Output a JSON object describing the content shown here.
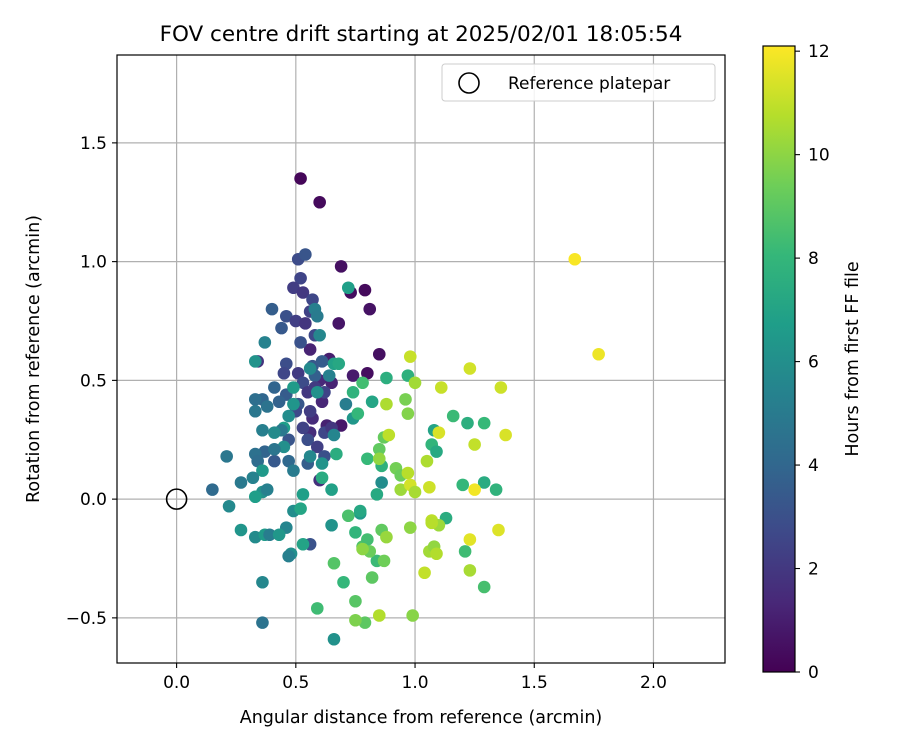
{
  "chart_data": {
    "type": "scatter",
    "title": "FOV centre drift starting at 2025/02/01 18:05:54",
    "xlabel": "Angular distance from reference (arcmin)",
    "ylabel": "Rotation from reference (arcmin)",
    "xlim": [
      -0.25,
      2.3
    ],
    "ylim": [
      -0.69,
      1.87
    ],
    "xticks": [
      0.0,
      0.5,
      1.0,
      1.5,
      2.0
    ],
    "xtick_labels": [
      "0.0",
      "0.5",
      "1.0",
      "1.5",
      "2.0"
    ],
    "yticks": [
      -0.5,
      0.0,
      0.5,
      1.0,
      1.5
    ],
    "ytick_labels": [
      "−0.5",
      "0.0",
      "0.5",
      "1.0",
      "1.5"
    ],
    "grid": true,
    "legend": {
      "placement": "top-right",
      "entries": [
        "Reference platepar"
      ]
    },
    "reference_point": {
      "label": "Reference platepar",
      "x": 0.0,
      "y": 0.0,
      "marker": "open-circle"
    },
    "colorbar": {
      "label": "Hours from first FF file",
      "min": 0,
      "max": 12.1,
      "ticks": [
        0,
        2,
        4,
        6,
        8,
        10,
        12
      ],
      "tick_labels": [
        "0",
        "2",
        "4",
        "6",
        "8",
        "10",
        "12"
      ],
      "colormap": "viridis"
    },
    "colormap_stops": [
      "#440154",
      "#482878",
      "#3e4989",
      "#31688e",
      "#26828e",
      "#1f9e89",
      "#35b779",
      "#6ece58",
      "#b5de2b",
      "#fde725"
    ],
    "points": [
      {
        "x": 0.52,
        "y": 1.35,
        "h": 0.2
      },
      {
        "x": 0.6,
        "y": 1.25,
        "h": 0.3
      },
      {
        "x": 0.69,
        "y": 0.98,
        "h": 0.5
      },
      {
        "x": 0.73,
        "y": 0.87,
        "h": 0.4
      },
      {
        "x": 0.79,
        "y": 0.88,
        "h": 0.3
      },
      {
        "x": 0.81,
        "y": 0.8,
        "h": 0.6
      },
      {
        "x": 0.68,
        "y": 0.74,
        "h": 0.7
      },
      {
        "x": 0.85,
        "y": 0.61,
        "h": 0.5
      },
      {
        "x": 0.74,
        "y": 0.52,
        "h": 0.9
      },
      {
        "x": 0.8,
        "y": 0.53,
        "h": 0.4
      },
      {
        "x": 0.64,
        "y": 0.59,
        "h": 1.0
      },
      {
        "x": 0.56,
        "y": 0.63,
        "h": 1.2
      },
      {
        "x": 0.61,
        "y": 0.41,
        "h": 1.3
      },
      {
        "x": 0.57,
        "y": 0.34,
        "h": 1.5
      },
      {
        "x": 0.63,
        "y": 0.31,
        "h": 1.1
      },
      {
        "x": 0.6,
        "y": 0.5,
        "h": 1.4
      },
      {
        "x": 0.69,
        "y": 0.31,
        "h": 0.8
      },
      {
        "x": 0.56,
        "y": 0.28,
        "h": 1.6
      },
      {
        "x": 0.6,
        "y": 0.08,
        "h": 1.7
      },
      {
        "x": 0.65,
        "y": 0.49,
        "h": 1.2
      },
      {
        "x": 0.51,
        "y": 1.01,
        "h": 2.8
      },
      {
        "x": 0.54,
        "y": 1.03,
        "h": 3.2
      },
      {
        "x": 0.52,
        "y": 0.93,
        "h": 2.5
      },
      {
        "x": 0.49,
        "y": 0.89,
        "h": 2.2
      },
      {
        "x": 0.53,
        "y": 0.87,
        "h": 2.0
      },
      {
        "x": 0.57,
        "y": 0.84,
        "h": 2.6
      },
      {
        "x": 0.56,
        "y": 0.79,
        "h": 2.4
      },
      {
        "x": 0.46,
        "y": 0.77,
        "h": 3.0
      },
      {
        "x": 0.5,
        "y": 0.75,
        "h": 2.3
      },
      {
        "x": 0.54,
        "y": 0.74,
        "h": 1.9
      },
      {
        "x": 0.44,
        "y": 0.72,
        "h": 3.4
      },
      {
        "x": 0.4,
        "y": 0.8,
        "h": 3.6
      },
      {
        "x": 0.52,
        "y": 0.66,
        "h": 3.1
      },
      {
        "x": 0.58,
        "y": 0.69,
        "h": 2.7
      },
      {
        "x": 0.34,
        "y": 0.58,
        "h": 1.8
      },
      {
        "x": 0.46,
        "y": 0.57,
        "h": 2.9
      },
      {
        "x": 0.51,
        "y": 0.53,
        "h": 2.1
      },
      {
        "x": 0.45,
        "y": 0.53,
        "h": 2.6
      },
      {
        "x": 0.53,
        "y": 0.49,
        "h": 2.8
      },
      {
        "x": 0.58,
        "y": 0.52,
        "h": 3.7
      },
      {
        "x": 0.55,
        "y": 0.45,
        "h": 2.0
      },
      {
        "x": 0.62,
        "y": 0.45,
        "h": 2.5
      },
      {
        "x": 0.51,
        "y": 0.4,
        "h": 3.3
      },
      {
        "x": 0.46,
        "y": 0.44,
        "h": 3.5
      },
      {
        "x": 0.56,
        "y": 0.37,
        "h": 2.2
      },
      {
        "x": 0.5,
        "y": 0.37,
        "h": 2.7
      },
      {
        "x": 0.43,
        "y": 0.41,
        "h": 3.8
      },
      {
        "x": 0.41,
        "y": 0.47,
        "h": 3.9
      },
      {
        "x": 0.36,
        "y": 0.42,
        "h": 4.0
      },
      {
        "x": 0.53,
        "y": 0.3,
        "h": 2.4
      },
      {
        "x": 0.47,
        "y": 0.25,
        "h": 3.2
      },
      {
        "x": 0.55,
        "y": 0.25,
        "h": 2.9
      },
      {
        "x": 0.59,
        "y": 0.22,
        "h": 2.3
      },
      {
        "x": 0.62,
        "y": 0.18,
        "h": 3.0
      },
      {
        "x": 0.55,
        "y": 0.15,
        "h": 3.6
      },
      {
        "x": 0.47,
        "y": 0.16,
        "h": 4.1
      },
      {
        "x": 0.41,
        "y": 0.16,
        "h": 3.4
      },
      {
        "x": 0.37,
        "y": 0.2,
        "h": 3.9
      },
      {
        "x": 0.56,
        "y": -0.19,
        "h": 3.1
      },
      {
        "x": 0.62,
        "y": 0.28,
        "h": 2.6
      },
      {
        "x": 0.65,
        "y": 0.3,
        "h": 1.9
      },
      {
        "x": 0.57,
        "y": 0.56,
        "h": 3.3
      },
      {
        "x": 0.58,
        "y": 0.47,
        "h": 2.1
      },
      {
        "x": 0.61,
        "y": 0.58,
        "h": 3.5
      },
      {
        "x": 0.58,
        "y": 0.8,
        "h": 5.2
      },
      {
        "x": 0.59,
        "y": 0.77,
        "h": 5.0
      },
      {
        "x": 0.6,
        "y": 0.69,
        "h": 5.6
      },
      {
        "x": 0.72,
        "y": 0.89,
        "h": 6.8
      },
      {
        "x": 0.37,
        "y": 0.66,
        "h": 5.4
      },
      {
        "x": 0.33,
        "y": 0.58,
        "h": 6.2
      },
      {
        "x": 0.38,
        "y": 0.39,
        "h": 4.6
      },
      {
        "x": 0.33,
        "y": 0.42,
        "h": 4.4
      },
      {
        "x": 0.33,
        "y": 0.37,
        "h": 4.8
      },
      {
        "x": 0.47,
        "y": 0.35,
        "h": 5.9
      },
      {
        "x": 0.49,
        "y": 0.4,
        "h": 6.3
      },
      {
        "x": 0.49,
        "y": 0.47,
        "h": 6.6
      },
      {
        "x": 0.56,
        "y": 0.55,
        "h": 5.7
      },
      {
        "x": 0.59,
        "y": 0.45,
        "h": 6.1
      },
      {
        "x": 0.64,
        "y": 0.52,
        "h": 5.3
      },
      {
        "x": 0.66,
        "y": 0.57,
        "h": 6.9
      },
      {
        "x": 0.68,
        "y": 0.57,
        "h": 7.2
      },
      {
        "x": 0.71,
        "y": 0.4,
        "h": 5.1
      },
      {
        "x": 0.74,
        "y": 0.34,
        "h": 6.4
      },
      {
        "x": 0.66,
        "y": 0.27,
        "h": 5.5
      },
      {
        "x": 0.45,
        "y": 0.3,
        "h": 6.7
      },
      {
        "x": 0.44,
        "y": 0.29,
        "h": 4.9
      },
      {
        "x": 0.41,
        "y": 0.28,
        "h": 5.8
      },
      {
        "x": 0.36,
        "y": 0.29,
        "h": 5.2
      },
      {
        "x": 0.45,
        "y": 0.22,
        "h": 6.0
      },
      {
        "x": 0.41,
        "y": 0.21,
        "h": 4.7
      },
      {
        "x": 0.33,
        "y": 0.19,
        "h": 4.5
      },
      {
        "x": 0.34,
        "y": 0.16,
        "h": 4.3
      },
      {
        "x": 0.36,
        "y": 0.12,
        "h": 6.5
      },
      {
        "x": 0.49,
        "y": 0.12,
        "h": 5.0
      },
      {
        "x": 0.56,
        "y": 0.18,
        "h": 5.6
      },
      {
        "x": 0.61,
        "y": 0.15,
        "h": 6.2
      },
      {
        "x": 0.21,
        "y": 0.18,
        "h": 4.8
      },
      {
        "x": 0.15,
        "y": 0.04,
        "h": 4.2
      },
      {
        "x": 0.27,
        "y": 0.07,
        "h": 4.9
      },
      {
        "x": 0.32,
        "y": 0.09,
        "h": 5.4
      },
      {
        "x": 0.36,
        "y": 0.03,
        "h": 6.1
      },
      {
        "x": 0.38,
        "y": 0.04,
        "h": 5.3
      },
      {
        "x": 0.33,
        "y": 0.01,
        "h": 6.7
      },
      {
        "x": 0.22,
        "y": -0.03,
        "h": 5.7
      },
      {
        "x": 0.49,
        "y": -0.05,
        "h": 5.9
      },
      {
        "x": 0.53,
        "y": 0.02,
        "h": 6.8
      },
      {
        "x": 0.52,
        "y": -0.04,
        "h": 7.1
      },
      {
        "x": 0.46,
        "y": -0.12,
        "h": 5.5
      },
      {
        "x": 0.27,
        "y": -0.13,
        "h": 6.3
      },
      {
        "x": 0.33,
        "y": -0.16,
        "h": 5.8
      },
      {
        "x": 0.37,
        "y": -0.15,
        "h": 6.6
      },
      {
        "x": 0.39,
        "y": -0.15,
        "h": 5.1
      },
      {
        "x": 0.43,
        "y": -0.15,
        "h": 6.4
      },
      {
        "x": 0.48,
        "y": -0.23,
        "h": 6.0
      },
      {
        "x": 0.47,
        "y": -0.24,
        "h": 5.2
      },
      {
        "x": 0.36,
        "y": -0.35,
        "h": 5.6
      },
      {
        "x": 0.36,
        "y": -0.52,
        "h": 4.6
      },
      {
        "x": 0.53,
        "y": -0.19,
        "h": 7.0
      },
      {
        "x": 0.65,
        "y": -0.11,
        "h": 6.2
      },
      {
        "x": 0.77,
        "y": -0.06,
        "h": 6.5
      },
      {
        "x": 0.66,
        "y": -0.59,
        "h": 6.1
      },
      {
        "x": 0.84,
        "y": 0.02,
        "h": 7.3
      },
      {
        "x": 0.86,
        "y": 0.07,
        "h": 5.9
      },
      {
        "x": 0.61,
        "y": 0.09,
        "h": 7.4
      },
      {
        "x": 0.65,
        "y": 0.04,
        "h": 6.9
      },
      {
        "x": 0.67,
        "y": 0.19,
        "h": 7.5
      },
      {
        "x": 0.74,
        "y": 0.45,
        "h": 7.8
      },
      {
        "x": 0.76,
        "y": 0.36,
        "h": 8.0
      },
      {
        "x": 0.78,
        "y": 0.49,
        "h": 8.4
      },
      {
        "x": 0.77,
        "y": -0.05,
        "h": 7.2
      },
      {
        "x": 0.82,
        "y": 0.41,
        "h": 7.1
      },
      {
        "x": 0.88,
        "y": 0.51,
        "h": 7.6
      },
      {
        "x": 0.97,
        "y": 0.52,
        "h": 7.7
      },
      {
        "x": 1.08,
        "y": 0.29,
        "h": 7.0
      },
      {
        "x": 1.07,
        "y": 0.23,
        "h": 7.9
      },
      {
        "x": 1.09,
        "y": 0.2,
        "h": 7.3
      },
      {
        "x": 1.16,
        "y": 0.35,
        "h": 8.2
      },
      {
        "x": 1.22,
        "y": 0.32,
        "h": 7.6
      },
      {
        "x": 1.29,
        "y": 0.32,
        "h": 8.1
      },
      {
        "x": 1.2,
        "y": 0.06,
        "h": 8.0
      },
      {
        "x": 1.29,
        "y": 0.07,
        "h": 7.4
      },
      {
        "x": 1.34,
        "y": 0.04,
        "h": 7.8
      },
      {
        "x": 1.13,
        "y": -0.08,
        "h": 7.5
      },
      {
        "x": 1.21,
        "y": -0.22,
        "h": 8.3
      },
      {
        "x": 1.29,
        "y": -0.37,
        "h": 8.5
      },
      {
        "x": 0.86,
        "y": 0.14,
        "h": 7.7
      },
      {
        "x": 0.8,
        "y": 0.17,
        "h": 8.1
      },
      {
        "x": 0.72,
        "y": -0.07,
        "h": 8.6
      },
      {
        "x": 0.75,
        "y": -0.14,
        "h": 7.9
      },
      {
        "x": 0.78,
        "y": -0.2,
        "h": 8.7
      },
      {
        "x": 0.8,
        "y": -0.17,
        "h": 8.4
      },
      {
        "x": 0.84,
        "y": -0.26,
        "h": 8.2
      },
      {
        "x": 0.66,
        "y": -0.27,
        "h": 8.8
      },
      {
        "x": 0.7,
        "y": -0.35,
        "h": 8.0
      },
      {
        "x": 0.59,
        "y": -0.46,
        "h": 8.3
      },
      {
        "x": 0.75,
        "y": -0.43,
        "h": 8.9
      },
      {
        "x": 0.82,
        "y": -0.33,
        "h": 9.0
      },
      {
        "x": 0.85,
        "y": 0.21,
        "h": 9.1
      },
      {
        "x": 0.87,
        "y": 0.26,
        "h": 9.2
      },
      {
        "x": 0.81,
        "y": -0.22,
        "h": 9.3
      },
      {
        "x": 0.87,
        "y": -0.26,
        "h": 9.4
      },
      {
        "x": 0.79,
        "y": -0.52,
        "h": 9.0
      },
      {
        "x": 0.86,
        "y": -0.13,
        "h": 9.1
      },
      {
        "x": 0.92,
        "y": 0.13,
        "h": 9.5
      },
      {
        "x": 0.96,
        "y": 0.42,
        "h": 9.6
      },
      {
        "x": 0.94,
        "y": 0.1,
        "h": 9.3
      },
      {
        "x": 0.75,
        "y": -0.51,
        "h": 9.7
      },
      {
        "x": 0.97,
        "y": 0.36,
        "h": 9.8
      },
      {
        "x": 0.88,
        "y": 0.4,
        "h": 10.6
      },
      {
        "x": 0.98,
        "y": 0.6,
        "h": 11.1
      },
      {
        "x": 1.0,
        "y": 0.49,
        "h": 10.4
      },
      {
        "x": 0.85,
        "y": 0.17,
        "h": 10.1
      },
      {
        "x": 0.89,
        "y": 0.27,
        "h": 10.9
      },
      {
        "x": 0.94,
        "y": 0.04,
        "h": 10.3
      },
      {
        "x": 0.98,
        "y": -0.12,
        "h": 10.0
      },
      {
        "x": 0.99,
        "y": -0.49,
        "h": 9.9
      },
      {
        "x": 0.85,
        "y": -0.49,
        "h": 10.7
      },
      {
        "x": 0.88,
        "y": -0.16,
        "h": 10.2
      },
      {
        "x": 0.97,
        "y": 0.11,
        "h": 10.8
      },
      {
        "x": 0.98,
        "y": 0.06,
        "h": 11.3
      },
      {
        "x": 1.0,
        "y": 0.03,
        "h": 10.5
      },
      {
        "x": 1.04,
        "y": -0.31,
        "h": 11.0
      },
      {
        "x": 1.05,
        "y": 0.16,
        "h": 10.6
      },
      {
        "x": 1.06,
        "y": 0.05,
        "h": 11.2
      },
      {
        "x": 1.06,
        "y": -0.22,
        "h": 10.4
      },
      {
        "x": 1.07,
        "y": -0.09,
        "h": 10.9
      },
      {
        "x": 1.08,
        "y": -0.2,
        "h": 10.1
      },
      {
        "x": 1.09,
        "y": -0.23,
        "h": 10.7
      },
      {
        "x": 1.1,
        "y": -0.11,
        "h": 10.3
      },
      {
        "x": 1.1,
        "y": 0.28,
        "h": 11.4
      },
      {
        "x": 1.11,
        "y": 0.47,
        "h": 11.1
      },
      {
        "x": 1.23,
        "y": 0.55,
        "h": 11.3
      },
      {
        "x": 1.25,
        "y": 0.23,
        "h": 11.0
      },
      {
        "x": 1.25,
        "y": 0.04,
        "h": 11.9
      },
      {
        "x": 1.23,
        "y": -0.17,
        "h": 11.6
      },
      {
        "x": 1.23,
        "y": -0.3,
        "h": 10.5
      },
      {
        "x": 1.35,
        "y": -0.13,
        "h": 11.5
      },
      {
        "x": 1.36,
        "y": 0.47,
        "h": 11.2
      },
      {
        "x": 1.38,
        "y": 0.27,
        "h": 11.4
      },
      {
        "x": 0.78,
        "y": -0.21,
        "h": 10.0
      },
      {
        "x": 1.07,
        "y": -0.1,
        "h": 10.8
      },
      {
        "x": 1.67,
        "y": 1.01,
        "h": 12.0
      },
      {
        "x": 1.77,
        "y": 0.61,
        "h": 11.8
      }
    ]
  }
}
